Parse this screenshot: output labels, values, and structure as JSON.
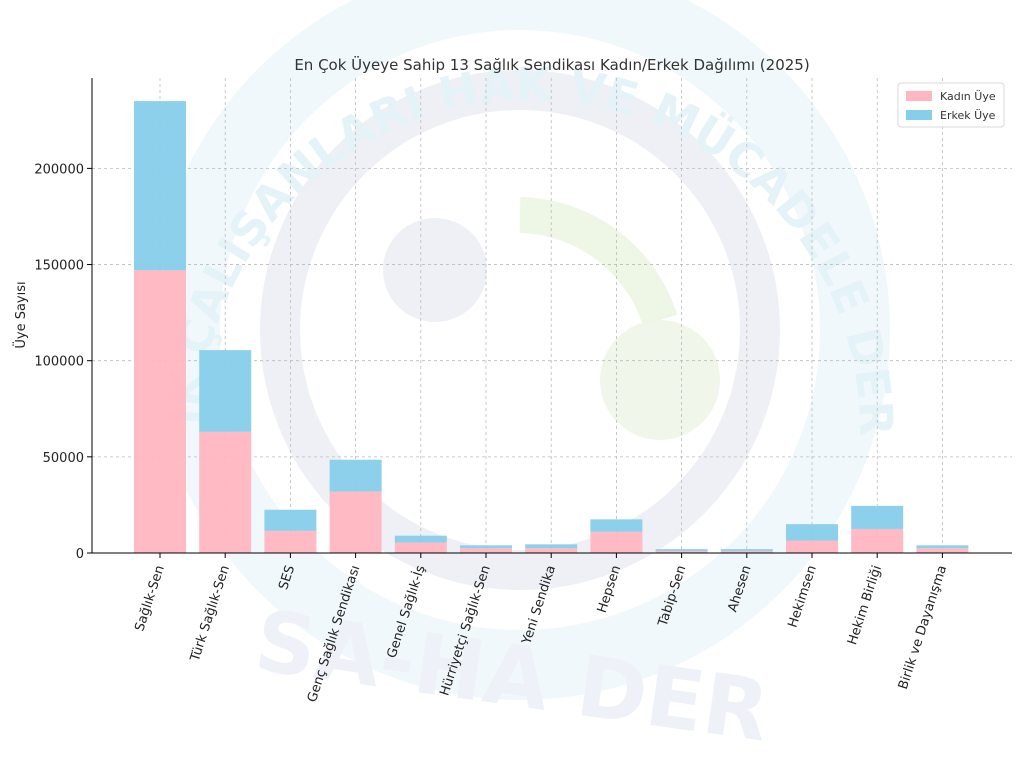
{
  "chart_data": {
    "type": "bar",
    "stacked": true,
    "title": "En Çok Üyeye Sahip 13 Sağlık Sendikası Kadın/Erkek Dağılımı (2025)",
    "xlabel": "",
    "ylabel": "Üye Sayısı",
    "ylim": [
      0,
      247000
    ],
    "yticks": [
      0,
      50000,
      100000,
      150000,
      200000
    ],
    "grid": true,
    "legend_position": "top-right",
    "categories": [
      "Sağlık-Sen",
      "Türk Sağlık-Sen",
      "SES",
      "Genç Sağlık Sendikası",
      "Genel Sağlık-İş",
      "Hürriyetçi Sağlık-Sen",
      "Yeni Sendika",
      "Hepsen",
      "Tabip-Sen",
      "Ahesen",
      "Hekimsen",
      "Hekim Birliği",
      "Birlik ve Dayanışma"
    ],
    "series": [
      {
        "name": "Kadın Üye",
        "color": "#ffb6c1",
        "values": [
          147000,
          63000,
          11500,
          32000,
          5500,
          2500,
          2500,
          11000,
          1000,
          1000,
          6500,
          12500,
          2500
        ]
      },
      {
        "name": "Erkek Üye",
        "color": "#87ceeb",
        "values": [
          88000,
          42500,
          11000,
          16500,
          3500,
          1500,
          2000,
          6500,
          1000,
          1000,
          8500,
          12000,
          1500
        ]
      }
    ]
  },
  "watermark": {
    "arc_text": "SAĞLIK ÇALIŞANLARI HAK VE MÜCADELE DERNEĞİ",
    "bottom_text": "SA-HA DER"
  }
}
